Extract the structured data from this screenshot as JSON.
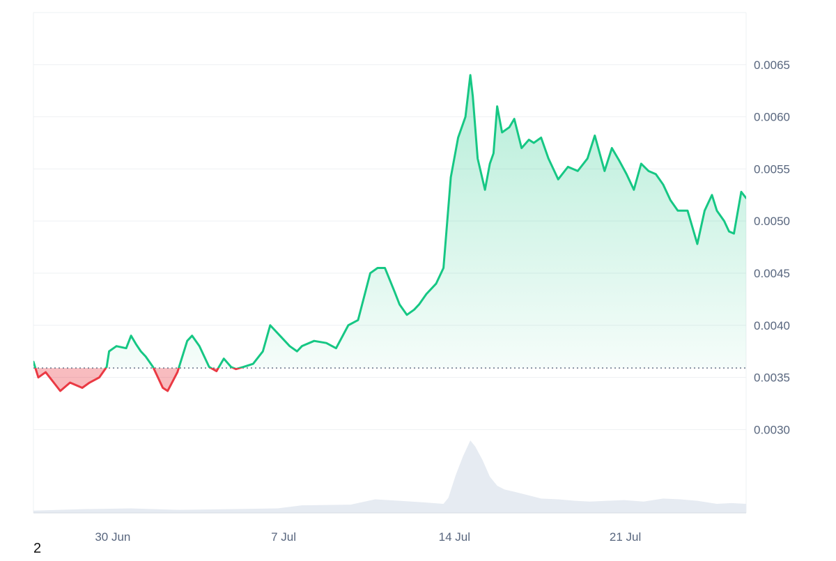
{
  "colors": {
    "up": "#16c784",
    "down": "#ea3943",
    "grid": "#eef0f3",
    "baseline": "#58667e",
    "axis_text": "#58667e",
    "volume": "#e6ebf2"
  },
  "footer_text": "2",
  "chart_data": {
    "type": "area",
    "title": "",
    "xlabel": "",
    "ylabel": "",
    "ylim": [
      0.0022,
      0.007
    ],
    "yticks": [
      0.003,
      0.0035,
      0.004,
      0.0045,
      0.005,
      0.0055,
      0.006,
      0.0065
    ],
    "ytick_labels": [
      "0.0030",
      "0.0035",
      "0.0040",
      "0.0045",
      "0.0050",
      "0.0055",
      "0.0060",
      "0.0065"
    ],
    "xlim": [
      0,
      29.2
    ],
    "xticks": [
      3.25,
      10.25,
      17.25,
      24.25
    ],
    "xtick_labels": [
      "30 Jun",
      "7 Jul",
      "14 Jul",
      "21 Jul"
    ],
    "baseline_value": 0.00359,
    "grid": true,
    "series": [
      {
        "values_x": [
          0,
          0.2,
          0.5,
          1.0,
          1.1,
          1.5,
          2.0,
          2.3,
          2.7,
          3.0,
          3.1,
          3.4,
          3.8,
          4.0,
          4.2,
          4.4,
          4.6,
          4.9,
          5.1,
          5.3,
          5.5,
          5.9,
          6.1,
          6.3,
          6.5,
          6.8,
          7.0,
          7.2,
          7.5,
          7.8,
          8.1,
          8.3,
          8.6,
          9.0,
          9.4,
          9.7,
          10.1,
          10.3,
          10.5,
          10.8,
          11.0,
          11.5,
          12.0,
          12.4,
          12.9,
          13.3,
          13.8,
          14.1,
          14.4,
          14.8,
          15.0,
          15.3,
          15.6,
          15.8,
          16.1,
          16.5,
          16.8,
          17.1,
          17.4,
          17.7,
          17.9,
          18.0,
          18.1,
          18.2,
          18.3,
          18.5,
          18.7,
          18.85,
          19.0,
          19.2,
          19.5,
          19.7,
          20.0,
          20.3,
          20.5,
          20.8,
          21.1,
          21.5,
          21.9,
          22.3,
          22.7,
          23.0,
          23.4,
          23.7,
          24.0,
          24.3,
          24.6,
          24.9,
          25.2,
          25.5,
          25.8,
          26.1,
          26.4,
          26.8,
          27.2,
          27.5,
          27.8,
          28.0,
          28.3,
          28.5,
          28.7,
          29.0,
          29.2
        ],
        "values": [
          0.00365,
          0.0035,
          0.00355,
          0.0034,
          0.00337,
          0.00345,
          0.0034,
          0.00345,
          0.0035,
          0.0036,
          0.00375,
          0.0038,
          0.00378,
          0.0039,
          0.00382,
          0.00375,
          0.0037,
          0.0036,
          0.0035,
          0.0034,
          0.00337,
          0.00355,
          0.0037,
          0.00385,
          0.0039,
          0.0038,
          0.0037,
          0.0036,
          0.00356,
          0.00368,
          0.0036,
          0.00358,
          0.0036,
          0.00363,
          0.00375,
          0.004,
          0.0039,
          0.00385,
          0.0038,
          0.00375,
          0.0038,
          0.00385,
          0.00383,
          0.00378,
          0.004,
          0.00405,
          0.0045,
          0.00455,
          0.00455,
          0.00432,
          0.0042,
          0.0041,
          0.00415,
          0.0042,
          0.0043,
          0.0044,
          0.00455,
          0.00542,
          0.0058,
          0.006,
          0.0064,
          0.0062,
          0.0059,
          0.0056,
          0.0055,
          0.0053,
          0.00555,
          0.00565,
          0.0061,
          0.00585,
          0.0059,
          0.00598,
          0.0057,
          0.00578,
          0.00575,
          0.0058,
          0.0056,
          0.0054,
          0.00552,
          0.00548,
          0.0056,
          0.00582,
          0.00548,
          0.0057,
          0.00558,
          0.00545,
          0.0053,
          0.00555,
          0.00548,
          0.00545,
          0.00535,
          0.0052,
          0.0051,
          0.0051,
          0.00478,
          0.0051,
          0.00525,
          0.0051,
          0.005,
          0.0049,
          0.00488,
          0.00528,
          0.00522
        ]
      }
    ],
    "volume": {
      "x": [
        0,
        2,
        4,
        6,
        8,
        10,
        11,
        13,
        14,
        15,
        16,
        16.8,
        17.0,
        17.3,
        17.6,
        17.9,
        18.1,
        18.4,
        18.7,
        19.0,
        19.3,
        19.7,
        20.2,
        20.8,
        21.5,
        22.2,
        22.8,
        23.5,
        24.2,
        25.0,
        25.8,
        26.5,
        27.2,
        28.0,
        28.6,
        29.2
      ],
      "values": [
        0.3,
        0.5,
        0.6,
        0.4,
        0.5,
        0.6,
        1.0,
        1.1,
        1.8,
        1.6,
        1.4,
        1.2,
        2.0,
        5.0,
        7.5,
        9.6,
        8.8,
        7.0,
        4.8,
        3.6,
        3.1,
        2.8,
        2.4,
        1.9,
        1.8,
        1.6,
        1.5,
        1.6,
        1.7,
        1.5,
        1.9,
        1.8,
        1.6,
        1.2,
        1.3,
        1.2
      ]
    }
  }
}
